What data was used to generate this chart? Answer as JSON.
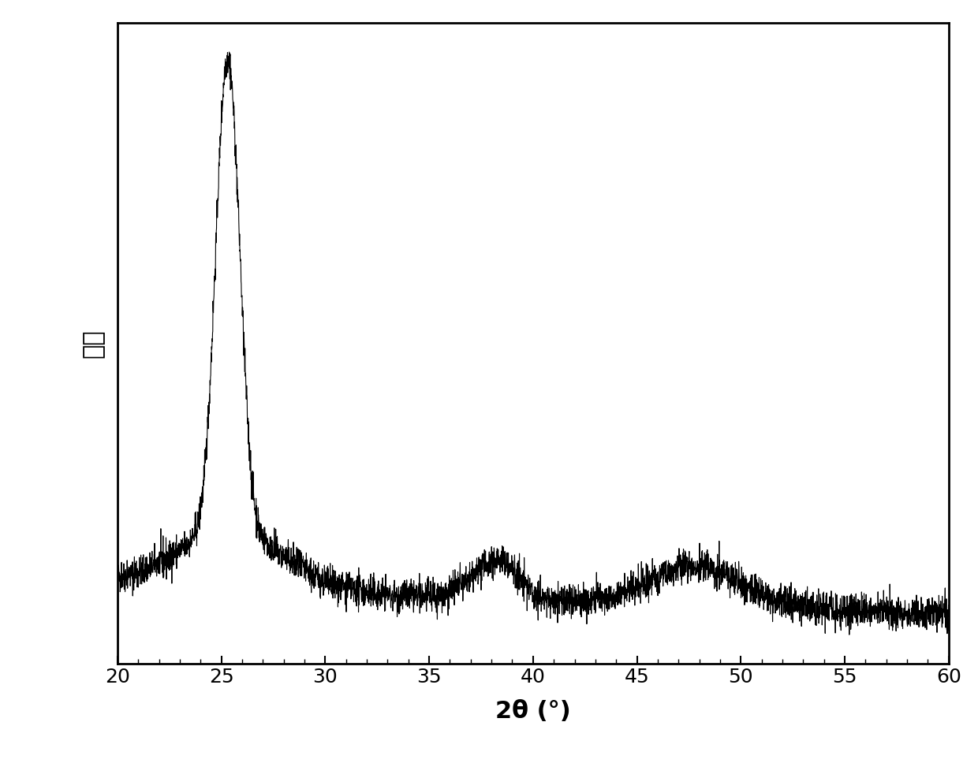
{
  "xlabel": "2θ (°)",
  "ylabel": "强度",
  "xlim": [
    20,
    60
  ],
  "xlabel_fontsize": 22,
  "ylabel_fontsize": 22,
  "tick_fontsize": 18,
  "xlabel_fontweight": "bold",
  "line_color": "#000000",
  "line_width": 0.8,
  "background_color": "#ffffff",
  "figure_background": "#ffffff",
  "xticks": [
    20,
    25,
    30,
    35,
    40,
    45,
    50,
    55,
    60
  ]
}
